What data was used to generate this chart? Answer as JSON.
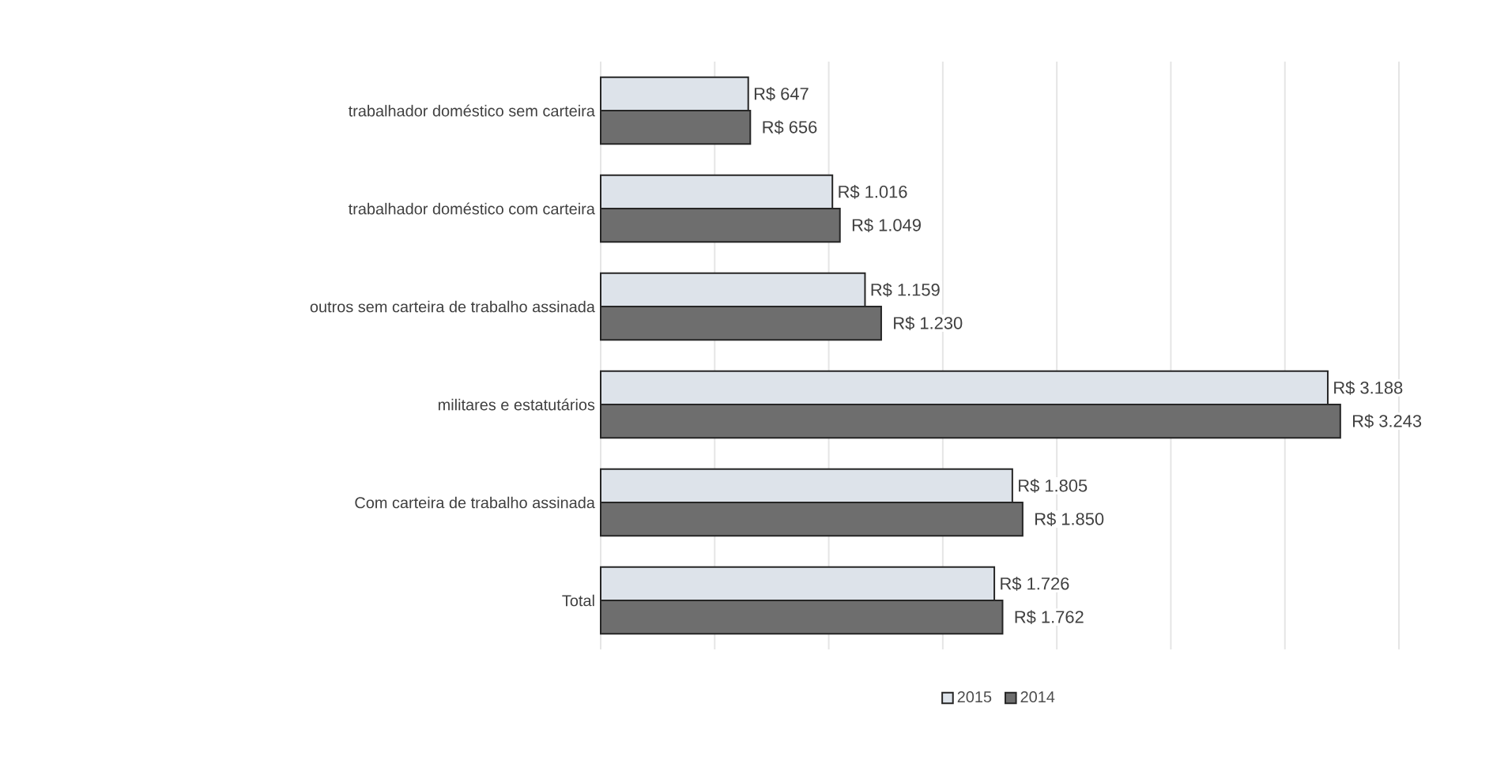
{
  "chart_data": {
    "type": "bar",
    "orientation": "horizontal",
    "categories": [
      "trabalhador doméstico sem carteira",
      "trabalhador doméstico com carteira",
      "outros sem carteira de trabalho assinada",
      "militares e estatutários",
      "Com carteira de trabalho assinada",
      "Total"
    ],
    "series": [
      {
        "name": "2015",
        "color": "#dde3ea",
        "values": [
          647,
          1016,
          1159,
          3188,
          1805,
          1726
        ],
        "value_labels": [
          "R$ 647",
          "R$ 1.016",
          "R$ 1.159",
          "R$ 3.188",
          "R$ 1.805",
          "R$ 1.726"
        ]
      },
      {
        "name": "2014",
        "color": "#6e6e6e",
        "values": [
          656,
          1049,
          1230,
          3243,
          1850,
          1762
        ],
        "value_labels": [
          "R$ 656",
          "R$ 1.049",
          "R$ 1.230",
          "R$ 3.243",
          "R$ 1.850",
          "R$ 1.762"
        ]
      }
    ],
    "xlim": [
      0,
      3500
    ],
    "xticks": [
      {
        "value": 0,
        "label": null
      },
      {
        "value": 500,
        "label": null
      },
      {
        "value": 1000,
        "label": null
      },
      {
        "value": 1500,
        "label": null
      },
      {
        "value": 2000,
        "label": null
      },
      {
        "value": 2500,
        "label": null
      },
      {
        "value": 3000,
        "label": null
      },
      {
        "value": 3500,
        "label": null
      }
    ],
    "grid": "x",
    "legend": "bottom",
    "tick_labels": "y"
  }
}
